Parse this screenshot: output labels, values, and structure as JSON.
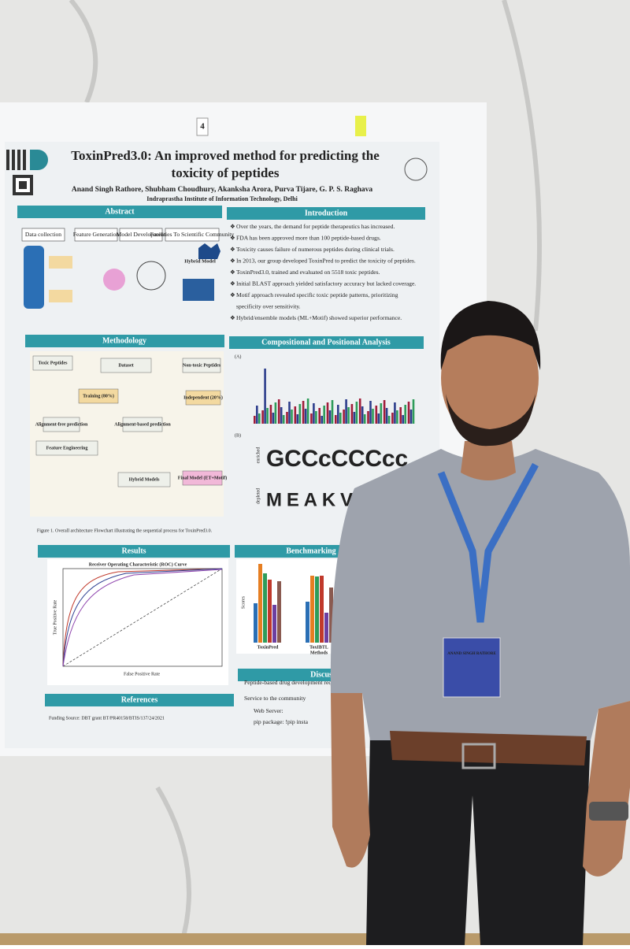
{
  "poster": {
    "number": "4",
    "title_lines": [
      "ToxinPred3.0: An improved method for predicting the",
      "toxicity of peptides"
    ],
    "authors": "Anand Singh Rathore, Shubham Choudhury, Akanksha Arora, Purva Tijare, G. P. S. Raghava",
    "affiliation": "Indraprastha Institute of Information Technology, Delhi",
    "abstract": {
      "heading": "Abstract",
      "steps": [
        "Data collection",
        "Feature Generation",
        "Model Development",
        "Facilities To Scientific Community"
      ],
      "hybrid": "Hybrid Model"
    },
    "introduction": {
      "heading": "Introduction",
      "bullets": [
        [
          "Over the years, the demand for peptide therapeutics has increased."
        ],
        [
          "FDA has been approved more than 100 peptide-based drugs."
        ],
        [
          "Toxicity causes failure of numerous peptides during clinical trials."
        ],
        [
          "In 2013, our group developed ToxinPred to predict the toxicity of peptides."
        ],
        [
          "ToxinPred3.0, trained and evaluated on 5518 toxic peptides."
        ],
        [
          "Initial BLAST approach yielded satisfactory accuracy but lacked coverage."
        ],
        [
          "Motif approach revealed specific toxic peptide patterns, prioritizing",
          "specificity over sensitivity."
        ],
        [
          "Hybrid/ensemble models (ML+Motif) showed superior performance."
        ]
      ]
    },
    "methodology": {
      "heading": "Methodology",
      "boxes": [
        "Toxic Peptides",
        "Dataset",
        "Non-toxic Peptides",
        "Training (80%)",
        "Independent (20%)",
        "Alignment-free prediction",
        "Alignment-based prediction",
        "Feature Engineering",
        "Hybrid Models",
        "Final Model (ET+Motif)"
      ],
      "caption": "Figure 1. Overall architecture Flowchart illustrating the sequential process for ToxinPred3.0."
    },
    "analysis": {
      "heading": "Compositional and Positional Analysis",
      "panels": [
        "(A)",
        "(B)"
      ],
      "logo_labels": [
        "enriched",
        "depleted"
      ]
    },
    "results": {
      "heading": "Results",
      "chart_title": "Receiver Operating Characteristic (ROC) Curve",
      "x_label": "False Positive Rate",
      "y_label": "True Positive Rate"
    },
    "benchmarking": {
      "heading": "Benchmarking",
      "groups": [
        "ToxinPred",
        "ToxIBTL"
      ],
      "x_label": "Methods",
      "y_label": "Scores"
    },
    "discussion": {
      "heading": "Discuss",
      "bullets": [
        "Peptide-based drug development require",
        "Service to the community",
        "Web Server:",
        "pip package: !pip insta"
      ]
    },
    "references": {
      "heading": "References",
      "funding": "Funding Source: DBT grant BT/PR40158/BTIS/137/24/2021"
    },
    "badge": {
      "name": "ANAND SINGH RATHORE"
    }
  }
}
